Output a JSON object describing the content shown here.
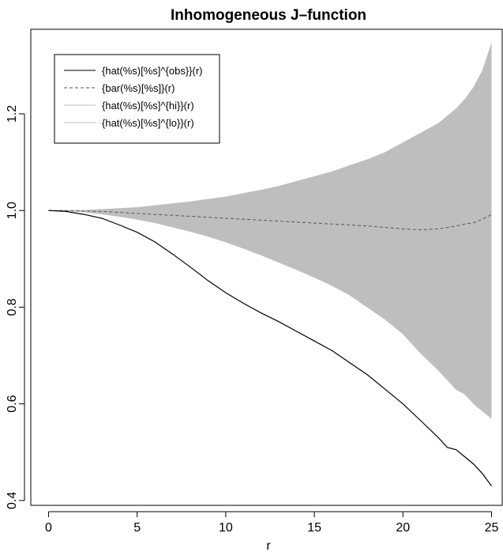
{
  "chart_data": {
    "type": "line",
    "title": "Inhomogeneous J–function",
    "xlabel": "r",
    "ylabel": "",
    "xlim": [
      -1,
      25.6
    ],
    "ylim": [
      0.39,
      1.375
    ],
    "x_ticks": [
      0,
      5,
      10,
      15,
      20,
      25
    ],
    "x_tick_labels": [
      "0",
      "5",
      "10",
      "15",
      "20",
      "25"
    ],
    "y_ticks": [
      0.4,
      0.6,
      0.8,
      1.0,
      1.2
    ],
    "y_tick_labels": [
      "0.4",
      "0.6",
      "0.8",
      "1.0",
      "1.2"
    ],
    "legend": {
      "position": "top-left",
      "entries": [
        {
          "label": "{hat(%s)[%s]^{obs}}(r)",
          "color": "#000000",
          "style": "solid"
        },
        {
          "label": "{bar(%s)[%s]}(r)",
          "color": "#555555",
          "style": "dashed"
        },
        {
          "label": "{hat(%s)[%s]^{hi}}(r)",
          "color": "#bebebe",
          "style": "solid"
        },
        {
          "label": "{hat(%s)[%s]^{lo}}(r)",
          "color": "#bebebe",
          "style": "solid"
        }
      ]
    },
    "envelope_color": "#bebebe",
    "x": [
      0,
      1,
      2,
      3,
      4,
      5,
      6,
      7,
      8,
      9,
      10,
      11,
      12,
      13,
      14,
      15,
      16,
      17,
      18,
      19,
      20,
      21,
      22,
      22.5,
      23,
      23.5,
      24,
      24.5,
      25
    ],
    "series": [
      {
        "name": "{hat(%s)[%s]^{obs}}(r)",
        "values": [
          1.0,
          0.998,
          0.992,
          0.984,
          0.97,
          0.955,
          0.935,
          0.91,
          0.883,
          0.855,
          0.83,
          0.808,
          0.788,
          0.77,
          0.75,
          0.73,
          0.71,
          0.685,
          0.66,
          0.63,
          0.6,
          0.565,
          0.53,
          0.51,
          0.505,
          0.49,
          0.475,
          0.455,
          0.43
        ]
      },
      {
        "name": "{bar(%s)[%s]}(r)",
        "values": [
          1.0,
          1.0,
          0.999,
          0.998,
          0.996,
          0.994,
          0.992,
          0.99,
          0.988,
          0.986,
          0.984,
          0.982,
          0.98,
          0.978,
          0.976,
          0.974,
          0.972,
          0.97,
          0.968,
          0.965,
          0.962,
          0.96,
          0.962,
          0.965,
          0.968,
          0.972,
          0.975,
          0.982,
          0.992
        ]
      },
      {
        "name": "{hat(%s)[%s]^{hi}}(r)",
        "values": [
          1.0,
          1.0,
          1.0,
          1.002,
          1.004,
          1.006,
          1.01,
          1.014,
          1.018,
          1.023,
          1.028,
          1.035,
          1.042,
          1.05,
          1.06,
          1.07,
          1.08,
          1.093,
          1.105,
          1.12,
          1.14,
          1.16,
          1.18,
          1.195,
          1.21,
          1.23,
          1.255,
          1.29,
          1.345
        ]
      },
      {
        "name": "{hat(%s)[%s]^{lo}}(r)",
        "values": [
          1.0,
          1.0,
          0.997,
          0.993,
          0.988,
          0.982,
          0.975,
          0.966,
          0.957,
          0.947,
          0.935,
          0.922,
          0.908,
          0.893,
          0.878,
          0.862,
          0.845,
          0.825,
          0.8,
          0.775,
          0.745,
          0.705,
          0.67,
          0.65,
          0.63,
          0.62,
          0.6,
          0.585,
          0.57
        ]
      }
    ]
  }
}
